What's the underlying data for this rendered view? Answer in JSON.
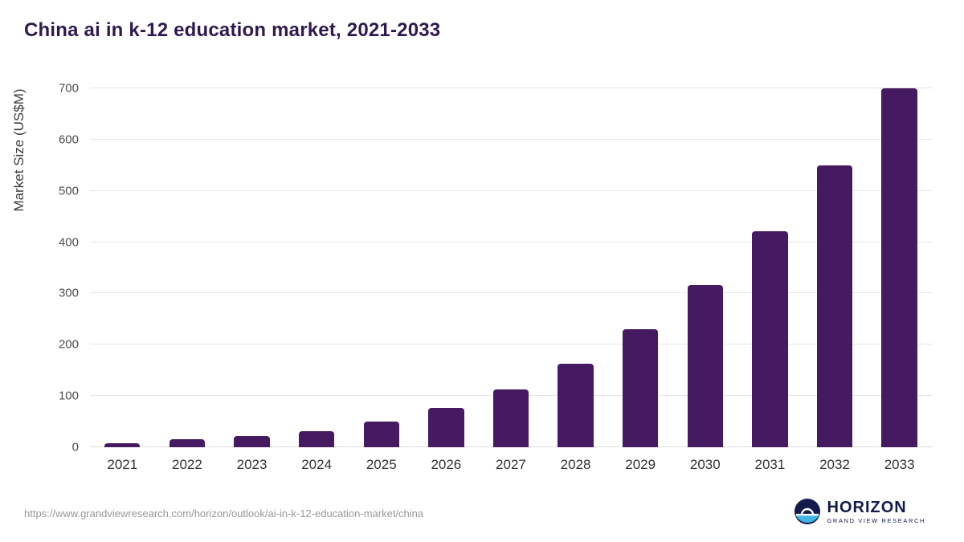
{
  "title": "China ai in k-12 education market, 2021-2033",
  "footer": {
    "url": "https://www.grandviewresearch.com/horizon/outlook/ai-in-k-12-education-market/china",
    "logo_title": "HORIZON",
    "logo_subtitle": "GRAND VIEW RESEARCH"
  },
  "colors": {
    "bar": "#451a61",
    "title_text": "#2e1a4f",
    "grid": "#e6e6e6",
    "axis_text": "#4d4d4d",
    "url_text": "#979797",
    "logo_navy": "#131b4d",
    "logo_blue": "#41b6e6"
  },
  "chart_data": {
    "type": "bar",
    "categories": [
      "2021",
      "2022",
      "2023",
      "2024",
      "2025",
      "2026",
      "2027",
      "2028",
      "2029",
      "2030",
      "2031",
      "2032",
      "2033"
    ],
    "values": [
      8,
      15,
      22,
      32,
      50,
      76,
      113,
      163,
      230,
      317,
      422,
      550,
      700
    ],
    "title": "China ai in k-12 education market, 2021-2033",
    "xlabel": "",
    "ylabel": "Market Size (US$M)",
    "ylim": [
      0,
      700
    ],
    "yticks": [
      0,
      100,
      200,
      300,
      400,
      500,
      600,
      700
    ],
    "grid": true,
    "legend": false,
    "bar_color": "#451a61"
  }
}
